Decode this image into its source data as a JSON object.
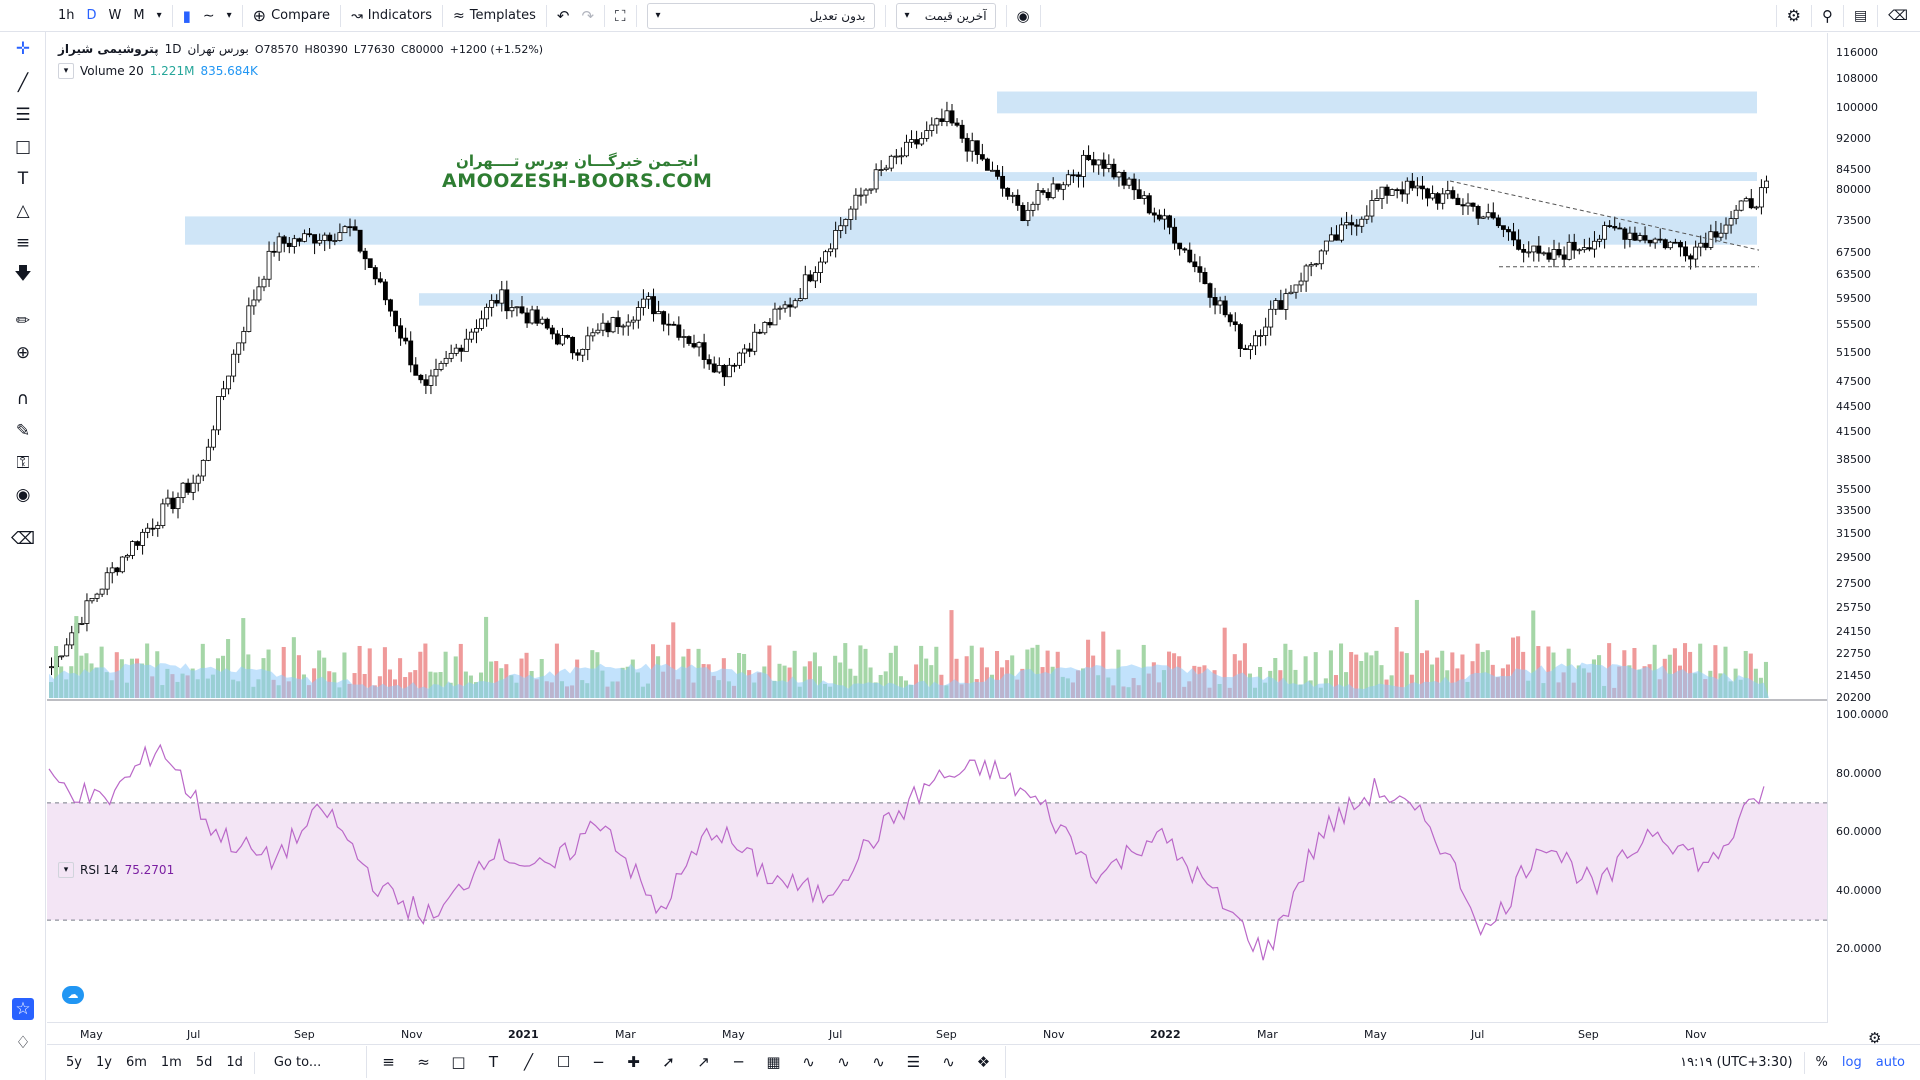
{
  "toolbar": {
    "intervals": [
      "1h",
      "D",
      "W",
      "M"
    ],
    "selected_interval": "D",
    "compare_label": "Compare",
    "indicators_label": "Indicators",
    "templates_label": "Templates",
    "adjust_dropdown": "بدون تعدیل",
    "price_dropdown": "آخرین قیمت"
  },
  "legend": {
    "symbol": "پتروشیمی شیراز",
    "interval": "1D",
    "exchange": "بورس تهران",
    "open": "O78570",
    "high": "H80390",
    "low": "L77630",
    "close": "C80000",
    "change": "+1200 (+1.52%)",
    "volume_name": "Volume 20",
    "volume_val1": "1.221M",
    "volume_val2": "835.684K",
    "rsi_name": "RSI 14",
    "rsi_val": "75.2701"
  },
  "watermark": {
    "line1": "انجـمن خبرگـــان بورس تــــهران",
    "line2": "AMOOZESH-BOORS.COM"
  },
  "price_axis": [
    "116000",
    "108000",
    "100000",
    "92000",
    "84500",
    "80000",
    "73500",
    "67500",
    "63500",
    "59500",
    "55500",
    "51500",
    "47500",
    "44500",
    "41500",
    "38500",
    "35500",
    "33500",
    "31500",
    "29500",
    "27500",
    "25750",
    "24150",
    "22750",
    "21450",
    "20200"
  ],
  "rsi_axis": [
    "100.0000",
    "80.0000",
    "60.0000",
    "40.0000",
    "20.0000"
  ],
  "time_axis": [
    "May",
    "Jul",
    "Sep",
    "Nov",
    "2021",
    "Mar",
    "May",
    "Jul",
    "Sep",
    "Nov",
    "2022",
    "Mar",
    "May",
    "Jul",
    "Sep",
    "Nov"
  ],
  "bottom": {
    "ranges": [
      "5y",
      "1y",
      "6m",
      "1m",
      "5d",
      "1d"
    ],
    "goto": "Go to...",
    "clock": "۱۹:۱۹ (UTC+3:30)",
    "percent": "%",
    "log": "log",
    "auto": "auto"
  },
  "colors": {
    "accent": "#2962ff",
    "zone": "#cfe5f7",
    "rsi_band": "#f3e5f5",
    "rsi_line": "#ba68c8",
    "vol_up": "#a5d6a7",
    "vol_down": "#ef9a9a",
    "vol_ma": "#90caf9"
  },
  "chart_data": {
    "type": "candlestick",
    "x": [
      "May",
      "Jul",
      "Sep",
      "Nov",
      "2021",
      "Mar",
      "May",
      "Jul",
      "Sep",
      "Nov",
      "2022",
      "Mar",
      "May",
      "Jul",
      "Sep",
      "Nov"
    ],
    "price_path": [
      22000,
      30000,
      37000,
      69000,
      72000,
      46000,
      60000,
      52000,
      59000,
      49000,
      60000,
      82000,
      97000,
      75000,
      88000,
      72000,
      52000,
      67000,
      81000,
      77000,
      66000,
      72000,
      68000,
      80000
    ],
    "rsi_path": [
      78,
      70,
      90,
      60,
      50,
      68,
      40,
      30,
      55,
      46,
      65,
      32,
      62,
      45,
      38,
      60,
      78,
      82,
      68,
      45,
      60,
      40,
      18,
      60,
      75,
      62,
      25,
      58,
      40,
      62,
      48,
      75
    ],
    "zones": [
      [
        98500,
        104500
      ],
      [
        82000,
        84000
      ],
      [
        69000,
        74500
      ],
      [
        58500,
        60500
      ]
    ],
    "rsi_levels": [
      70,
      30
    ],
    "price_range": [
      20200,
      116000
    ],
    "rsi_range": [
      0,
      100
    ]
  }
}
